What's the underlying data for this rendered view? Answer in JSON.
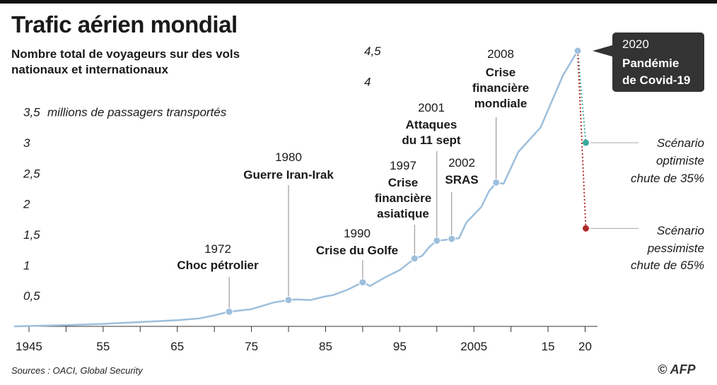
{
  "header": {
    "title": "Trafic aérien mondial",
    "subtitle": "Nombre total de voyageurs sur des vols nationaux et internationaux"
  },
  "footer": {
    "source": "Sources : OACI, Global Security",
    "credit": "© AFP"
  },
  "colors": {
    "line": "#9dbfdc",
    "point": "#9dbfdc",
    "optimistic": "#3aa99a",
    "pessimistic": "#b02a2a",
    "covid_box": "#333333",
    "axis": "#333333"
  },
  "chart_data": {
    "type": "line",
    "title": "Trafic aérien mondial",
    "ylabel": "millions de passagers transportés",
    "xlim": [
      1943,
      2021
    ],
    "ylim": [
      0,
      4.5
    ],
    "y_ticks": [
      {
        "value": 0.5,
        "label": "0,5"
      },
      {
        "value": 1,
        "label": "1"
      },
      {
        "value": 1.5,
        "label": "1,5"
      },
      {
        "value": 2,
        "label": "2"
      },
      {
        "value": 2.5,
        "label": "2,5"
      },
      {
        "value": 3,
        "label": "3"
      },
      {
        "value": 3.5,
        "label": "3,5"
      },
      {
        "value": 4,
        "label": "4"
      },
      {
        "value": 4.5,
        "label": "4,5"
      }
    ],
    "x_ticks": [
      {
        "value": 1945,
        "label": "1945"
      },
      {
        "value": 1955,
        "label": "55"
      },
      {
        "value": 1965,
        "label": "65"
      },
      {
        "value": 1975,
        "label": "75"
      },
      {
        "value": 1985,
        "label": "85"
      },
      {
        "value": 1995,
        "label": "95"
      },
      {
        "value": 2005,
        "label": "2005"
      },
      {
        "value": 2015,
        "label": "15"
      },
      {
        "value": 2020,
        "label": "20"
      }
    ],
    "series": [
      {
        "x": [
          1943,
          1950,
          1955,
          1960,
          1965,
          1968,
          1970,
          1972,
          1975,
          1978,
          1980,
          1981,
          1983,
          1985,
          1986,
          1988,
          1990,
          1991,
          1993,
          1995,
          1997,
          1998,
          1999,
          2000,
          2001,
          2002,
          2003,
          2004,
          2006,
          2007,
          2008,
          2009,
          2011,
          2014,
          2017,
          2019
        ],
        "y": [
          0.0,
          0.02,
          0.04,
          0.07,
          0.1,
          0.13,
          0.18,
          0.24,
          0.28,
          0.39,
          0.43,
          0.44,
          0.43,
          0.49,
          0.51,
          0.6,
          0.72,
          0.66,
          0.8,
          0.92,
          1.11,
          1.15,
          1.3,
          1.4,
          1.41,
          1.43,
          1.44,
          1.7,
          1.95,
          2.2,
          2.35,
          2.33,
          2.85,
          3.25,
          4.1,
          4.5
        ]
      }
    ],
    "events": [
      {
        "year_label": "1972",
        "label": "Choc pétrolier",
        "x": 1972,
        "y": 0.24
      },
      {
        "year_label": "1980",
        "label": "Guerre Iran-Irak",
        "x": 1980,
        "y": 0.43
      },
      {
        "year_label": "1990",
        "label": "Crise du Golfe",
        "x": 1990,
        "y": 0.72
      },
      {
        "year_label": "1997",
        "label": "Crise financière asiatique",
        "x": 1997,
        "y": 1.11
      },
      {
        "year_label": "2001",
        "label": "Attaques du 11 sept",
        "x": 2000,
        "y": 1.4
      },
      {
        "year_label": "2002",
        "label": "SRAS",
        "x": 2002,
        "y": 1.43
      },
      {
        "year_label": "2008",
        "label": "Crise financière mondiale",
        "x": 2008,
        "y": 2.35
      }
    ],
    "covid": {
      "year_label": "2020",
      "label": "Pandémie de Covid-19",
      "x": 2019,
      "y": 4.5
    },
    "scenarios": [
      {
        "label": "Scénario optimiste chute de 35%",
        "line1": "Scénario",
        "line2": "optimiste",
        "line3": "chute de 35%",
        "x": 2020,
        "y": 3.0
      },
      {
        "label": "Scénario pessimiste chute de 65%",
        "line1": "Scénario",
        "line2": "pessimiste",
        "line3": "chute de 65%",
        "x": 2020,
        "y": 1.6
      }
    ],
    "grid": false
  }
}
